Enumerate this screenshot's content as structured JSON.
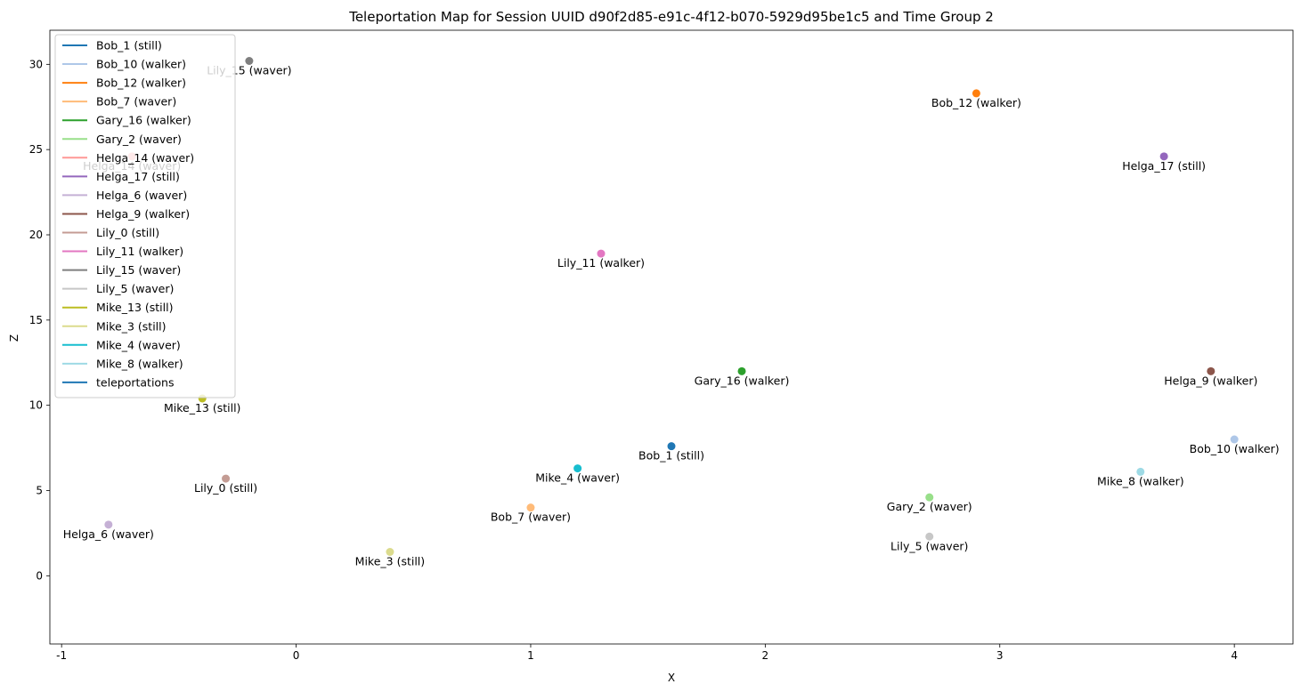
{
  "chart_data": {
    "type": "scatter",
    "title": "Teleportation Map for Session UUID d90f2d85-e91c-4f12-b070-5929d95be1c5 and Time Group 2",
    "xlabel": "X",
    "ylabel": "Z",
    "xlim": [
      -1.05,
      4.25
    ],
    "ylim": [
      -4.0,
      32.0
    ],
    "x_ticks": [
      -1,
      0,
      1,
      2,
      3,
      4
    ],
    "y_ticks": [
      0,
      5,
      10,
      15,
      20,
      25,
      30
    ],
    "grid": false,
    "legend_placement": "upper-left",
    "series": [
      {
        "name": "Bob_1 (still)",
        "color": "#1f77b4",
        "x": 1.6,
        "z": 7.6
      },
      {
        "name": "Bob_10 (walker)",
        "color": "#aec7e8",
        "x": 4.0,
        "z": 8.0
      },
      {
        "name": "Bob_12 (walker)",
        "color": "#ff7f0e",
        "x": 2.9,
        "z": 28.3
      },
      {
        "name": "Bob_7 (waver)",
        "color": "#ffbb78",
        "x": 1.0,
        "z": 4.0
      },
      {
        "name": "Gary_16 (walker)",
        "color": "#2ca02c",
        "x": 1.9,
        "z": 12.0
      },
      {
        "name": "Gary_2 (waver)",
        "color": "#98df8a",
        "x": 2.7,
        "z": 4.6
      },
      {
        "name": "Helga_14 (waver)",
        "color": "#ff9896",
        "x": -0.7,
        "z": 24.6
      },
      {
        "name": "Helga_17 (still)",
        "color": "#9467bd",
        "x": 3.7,
        "z": 24.6
      },
      {
        "name": "Helga_6 (waver)",
        "color": "#c5b0d5",
        "x": -0.8,
        "z": 3.0
      },
      {
        "name": "Helga_9 (walker)",
        "color": "#8c564b",
        "x": 3.9,
        "z": 12.0
      },
      {
        "name": "Lily_0 (still)",
        "color": "#c49c94",
        "x": -0.3,
        "z": 5.7
      },
      {
        "name": "Lily_11 (walker)",
        "color": "#e377c2",
        "x": 1.3,
        "z": 18.9
      },
      {
        "name": "Lily_15 (waver)",
        "color": "#7f7f7f",
        "x": -0.2,
        "z": 30.2
      },
      {
        "name": "Lily_5 (waver)",
        "color": "#c7c7c7",
        "x": 2.7,
        "z": 2.3
      },
      {
        "name": "Mike_13 (still)",
        "color": "#bcbd22",
        "x": -0.4,
        "z": 10.4
      },
      {
        "name": "Mike_3 (still)",
        "color": "#dbdb8d",
        "x": 0.4,
        "z": 1.4
      },
      {
        "name": "Mike_4 (waver)",
        "color": "#17becf",
        "x": 1.2,
        "z": 6.3
      },
      {
        "name": "Mike_8 (walker)",
        "color": "#9edae5",
        "x": 3.6,
        "z": 6.1
      }
    ],
    "extra_legend": {
      "name": "teleportations",
      "color": "#1f77b4"
    }
  }
}
